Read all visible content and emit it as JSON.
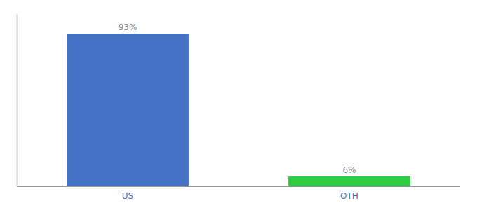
{
  "chart_data": {
    "type": "bar",
    "categories": [
      "US",
      "OTH"
    ],
    "values": [
      93,
      6
    ],
    "value_labels": [
      "93%",
      "6%"
    ],
    "colors": [
      "#4472c4",
      "#2ecc40"
    ],
    "ylim": [
      0,
      105
    ],
    "data_labels": true,
    "grid": false,
    "tick_labels": "x"
  }
}
